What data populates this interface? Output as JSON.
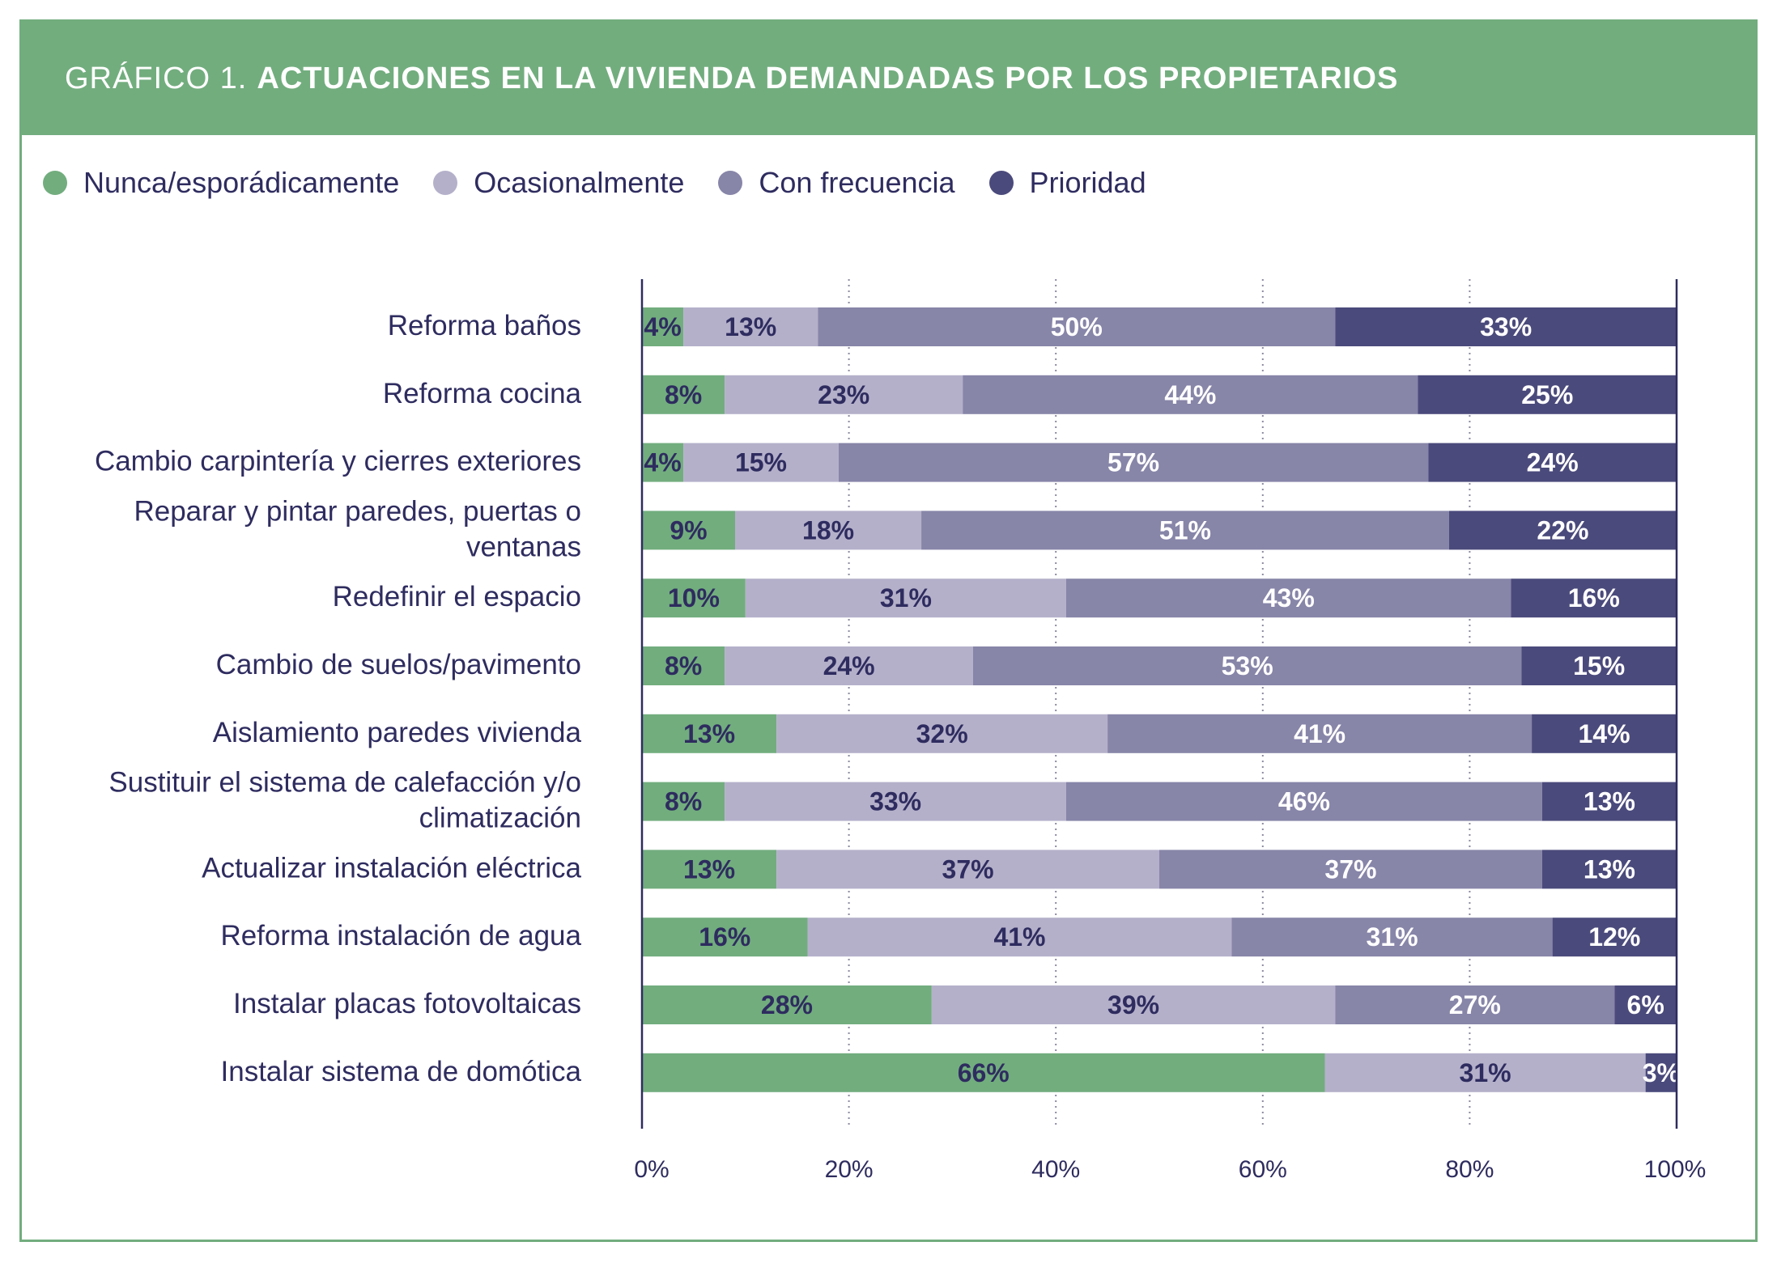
{
  "header": {
    "prefix": "GRÁFICO 1.",
    "title": "ACTUACIONES EN LA VIVIENDA DEMANDADAS POR LOS PROPIETARIOS"
  },
  "colors": {
    "frame": "#72ad7e",
    "text": "#2e2c5f",
    "series": [
      "#72ad7e",
      "#b4b0ca",
      "#8785a8",
      "#4b4a7c"
    ],
    "label_dark": "#2e2c5f",
    "label_light": "#ffffff"
  },
  "chart_data": {
    "type": "bar",
    "orientation": "horizontal",
    "stacked": true,
    "title": "ACTUACIONES EN LA VIVIENDA DEMANDADAS POR LOS PROPIETARIOS",
    "xlim": [
      0,
      100
    ],
    "xticks": [
      "0%",
      "20%",
      "40%",
      "60%",
      "80%",
      "100%"
    ],
    "grid": "vertical dotted",
    "legend_position": "top-left",
    "categories": [
      [
        "Reforma baños"
      ],
      [
        "Reforma cocina"
      ],
      [
        "Cambio carpintería y cierres exteriores"
      ],
      [
        "Reparar y pintar paredes, puertas o",
        "ventanas"
      ],
      [
        "Redefinir el espacio"
      ],
      [
        "Cambio de suelos/pavimento"
      ],
      [
        "Aislamiento paredes vivienda"
      ],
      [
        "Sustituir el sistema de calefacción y/o",
        "climatización"
      ],
      [
        "Actualizar instalación eléctrica"
      ],
      [
        "Reforma instalación de agua"
      ],
      [
        "Instalar placas fotovoltaicas"
      ],
      [
        "Instalar sistema de domótica"
      ]
    ],
    "series": [
      {
        "name": "Nunca/esporádicamente",
        "values": [
          4,
          8,
          4,
          9,
          10,
          8,
          13,
          8,
          13,
          16,
          28,
          66
        ]
      },
      {
        "name": "Ocasionalmente",
        "values": [
          13,
          23,
          15,
          18,
          31,
          24,
          32,
          33,
          37,
          41,
          39,
          31
        ]
      },
      {
        "name": "Con frecuencia",
        "values": [
          50,
          44,
          57,
          51,
          43,
          53,
          41,
          46,
          37,
          31,
          27,
          0
        ]
      },
      {
        "name": "Prioridad",
        "values": [
          33,
          25,
          24,
          22,
          16,
          15,
          14,
          13,
          13,
          12,
          6,
          3
        ]
      }
    ]
  }
}
